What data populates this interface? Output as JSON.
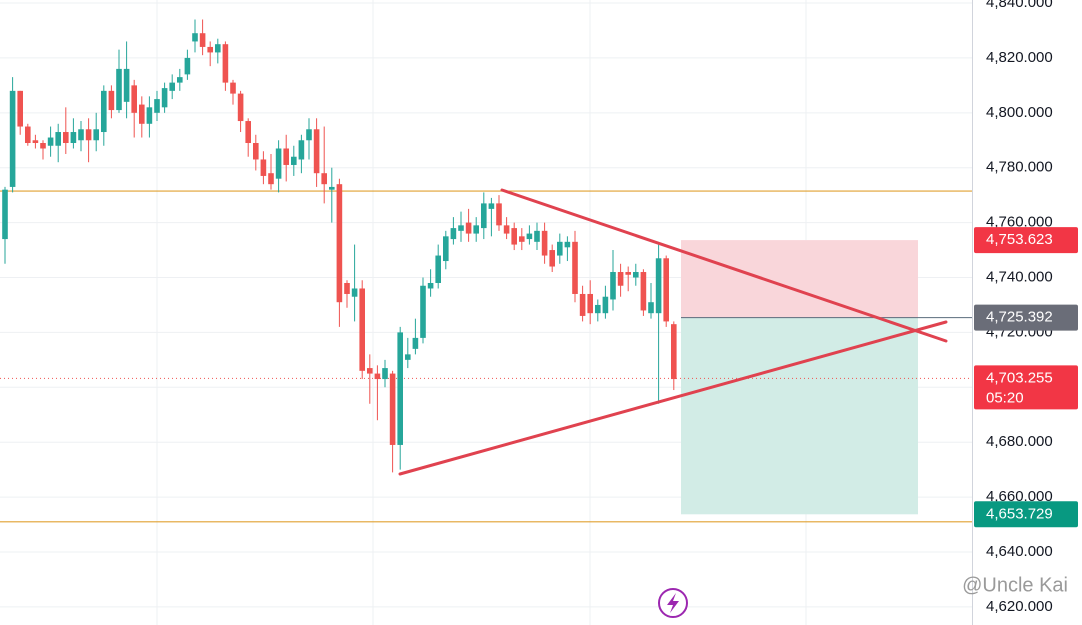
{
  "chart_data": {
    "type": "candlestick",
    "ylim": [
      4613.4,
      4841.1
    ],
    "yticks": [
      {
        "value": 4620,
        "label": "4,620.000"
      },
      {
        "value": 4640,
        "label": "4,640.000"
      },
      {
        "value": 4660,
        "label": "4,660.000"
      },
      {
        "value": 4680,
        "label": "4,680.000"
      },
      {
        "value": 4700,
        "label": "4,700.000"
      },
      {
        "value": 4720,
        "label": "4,720.000"
      },
      {
        "value": 4740,
        "label": "4,740.000"
      },
      {
        "value": 4760,
        "label": "4,760.000"
      },
      {
        "value": 4780,
        "label": "4,780.000"
      },
      {
        "value": 4800,
        "label": "4,800.000"
      },
      {
        "value": 4820,
        "label": "4,820.000"
      },
      {
        "value": 4840,
        "label": "4,840.000"
      }
    ],
    "up_color": "#26a69a",
    "down_color": "#ef5350",
    "open": [
      4754,
      4773,
      4808,
      4795,
      4790,
      4789,
      4788,
      4788,
      4793,
      4789,
      4790,
      4794,
      4790,
      4793,
      4808,
      4801,
      4804,
      4810,
      4803,
      4796,
      4800,
      4802,
      4808,
      4811,
      4814,
      4826,
      4829,
      4824,
      4822,
      4825,
      4811,
      4807,
      4797,
      4789,
      4783,
      4778,
      4776,
      4787,
      4781,
      4783,
      4790,
      4794,
      4778,
      4772,
      4774,
      4738,
      4733,
      4736,
      4707,
      4705,
      4703,
      4705,
      4679,
      4710,
      4714,
      4718,
      4736,
      4738,
      4746,
      4754,
      4757,
      4760,
      4756,
      4758,
      4765,
      4767,
      4759,
      4758,
      4755,
      4754,
      4753,
      4757,
      4750,
      4748,
      4751,
      4753,
      4734,
      4734,
      4727,
      4727,
      4732,
      4742,
      4742,
      4740,
      4742,
      4727,
      4727,
      4747,
      4723
    ],
    "high": [
      4773,
      4813,
      4808,
      4796,
      4792,
      4790,
      4795,
      4796,
      4802,
      4798,
      4797,
      4798,
      4800,
      4810,
      4810,
      4823,
      4826,
      4812,
      4806,
      4806,
      4808,
      4811,
      4814,
      4816,
      4823,
      4834,
      4834,
      4826,
      4827,
      4826,
      4812,
      4808,
      4798,
      4792,
      4786,
      4785,
      4790,
      4792,
      4788,
      4792,
      4798,
      4798,
      4795,
      4780,
      4776,
      4739,
      4752,
      4739,
      4712,
      4708,
      4710,
      4706,
      4722,
      4718,
      4725,
      4740,
      4743,
      4752,
      4757,
      4762,
      4764,
      4765,
      4762,
      4771,
      4769,
      4770,
      4762,
      4760,
      4758,
      4759,
      4760,
      4760,
      4752,
      4756,
      4755,
      4757,
      4737,
      4739,
      4732,
      4737,
      4750,
      4745,
      4744,
      4745,
      4743,
      4738,
      4752,
      4748,
      4724
    ],
    "low": [
      4745,
      4771,
      4792,
      4788,
      4787,
      4783,
      4784,
      4782,
      4785,
      4787,
      4786,
      4782,
      4786,
      4788,
      4798,
      4800,
      4798,
      4791,
      4791,
      4791,
      4797,
      4800,
      4805,
      4808,
      4812,
      4822,
      4821,
      4817,
      4818,
      4808,
      4803,
      4793,
      4784,
      4779,
      4774,
      4772,
      4771,
      4775,
      4777,
      4778,
      4783,
      4773,
      4767,
      4760,
      4722,
      4729,
      4724,
      4703,
      4694,
      4688,
      4700,
      4669,
      4670,
      4707,
      4712,
      4716,
      4733,
      4736,
      4743,
      4752,
      4753,
      4753,
      4753,
      4754,
      4755,
      4757,
      4754,
      4750,
      4750,
      4752,
      4750,
      4745,
      4742,
      4745,
      4746,
      4731,
      4724,
      4723,
      4724,
      4725,
      4728,
      4733,
      4735,
      4737,
      4726,
      4725,
      4694,
      4722,
      4699
    ],
    "close": [
      4772,
      4808,
      4795,
      4789,
      4789,
      4787,
      4791,
      4793,
      4789,
      4793,
      4794,
      4790,
      4794,
      4808,
      4801,
      4816,
      4816,
      4800,
      4796,
      4802,
      4805,
      4809,
      4811,
      4813,
      4820,
      4829,
      4824,
      4822,
      4825,
      4811,
      4807,
      4797,
      4789,
      4783,
      4777,
      4774,
      4787,
      4781,
      4784,
      4790,
      4794,
      4778,
      4774,
      4773,
      4731,
      4734,
      4736,
      4706,
      4705,
      4703,
      4707,
      4679,
      4720,
      4712,
      4718,
      4737,
      4738,
      4748,
      4755,
      4758,
      4759,
      4756,
      4759,
      4767,
      4767,
      4759,
      4756,
      4752,
      4753,
      4756,
      4757,
      4748,
      4744,
      4753,
      4753,
      4734,
      4726,
      4727,
      4730,
      4733,
      4742,
      4737,
      4741,
      4742,
      4728,
      4731,
      4747,
      4724,
      4703
    ],
    "levels": [
      4771.5,
      4651
    ],
    "level_color": "#e0a030",
    "price_tags": [
      {
        "value": 4753.623,
        "label": "4,753.623"
      },
      {
        "value": 4725.392,
        "label": "4,725.392"
      },
      {
        "value": 4703.255,
        "label": "4,703.255"
      },
      {
        "value": 4653.729,
        "label": "4,653.729"
      }
    ],
    "countdown": "05:20",
    "watermark": "@Uncle Kai"
  }
}
